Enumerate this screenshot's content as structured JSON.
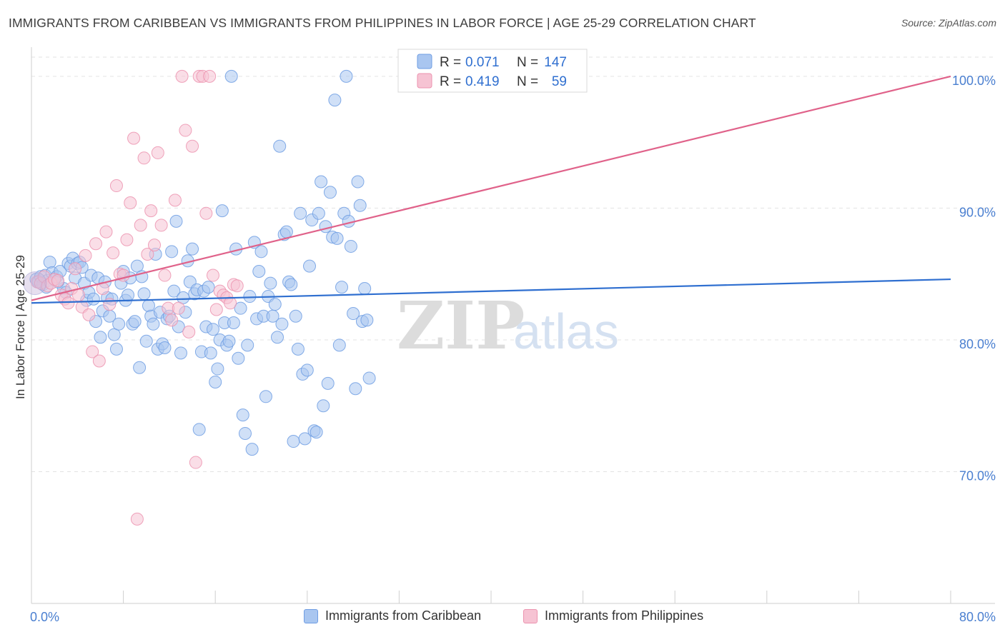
{
  "header": {
    "title": "IMMIGRANTS FROM CARIBBEAN VS IMMIGRANTS FROM PHILIPPINES IN LABOR FORCE | AGE 25-29 CORRELATION CHART",
    "source": "Source: ZipAtlas.com"
  },
  "watermark": {
    "zip": "ZIP",
    "atlas": "atlas"
  },
  "chart_data": {
    "type": "scatter",
    "title": "IMMIGRANTS FROM CARIBBEAN VS IMMIGRANTS FROM PHILIPPINES IN LABOR FORCE | AGE 25-29 CORRELATION CHART",
    "xlabel": "",
    "ylabel": "In Labor Force | Age 25-29",
    "xlim": [
      0,
      80
    ],
    "ylim": [
      60,
      102
    ],
    "x_tick_labels": [
      {
        "value": 0,
        "label": "0.0%"
      },
      {
        "value": 80,
        "label": "80.0%"
      }
    ],
    "y_tick_labels": [
      {
        "value": 70,
        "label": "70.0%"
      },
      {
        "value": 80,
        "label": "80.0%"
      },
      {
        "value": 90,
        "label": "90.0%"
      },
      {
        "value": 100,
        "label": "100.0%"
      }
    ],
    "grid": true,
    "legend_position": "top-center",
    "series": [
      {
        "name": "Immigrants from Caribbean",
        "color": "#6f9de3",
        "fill": "#a9c6f0",
        "line_color": "#2f6fd0",
        "r_label": "R =",
        "r_value": "0.071",
        "n_label": "N =",
        "n_value": "147",
        "trend": {
          "x0": 0,
          "y0": 82.8,
          "x1": 80,
          "y1": 84.6
        },
        "points": [
          [
            0.4,
            84.6
          ],
          [
            0.6,
            84.4
          ],
          [
            0.8,
            84.8
          ],
          [
            1.0,
            84.2
          ],
          [
            1.2,
            84.9
          ],
          [
            1.4,
            84.5
          ],
          [
            1.6,
            85.9
          ],
          [
            1.8,
            85.1
          ],
          [
            2.0,
            84.6
          ],
          [
            2.2,
            84.8
          ],
          [
            2.5,
            85.2
          ],
          [
            2.8,
            83.9
          ],
          [
            3.0,
            83.6
          ],
          [
            3.2,
            85.8
          ],
          [
            3.4,
            85.6
          ],
          [
            3.6,
            86.2
          ],
          [
            3.8,
            84.7
          ],
          [
            4.0,
            85.8
          ],
          [
            4.2,
            85.9
          ],
          [
            4.4,
            85.5
          ],
          [
            4.6,
            84.3
          ],
          [
            4.8,
            83.0
          ],
          [
            5.0,
            83.6
          ],
          [
            5.2,
            84.9
          ],
          [
            5.4,
            83.1
          ],
          [
            5.6,
            81.4
          ],
          [
            5.8,
            84.7
          ],
          [
            6.0,
            80.2
          ],
          [
            6.2,
            82.2
          ],
          [
            6.4,
            84.4
          ],
          [
            6.6,
            83.2
          ],
          [
            6.8,
            81.8
          ],
          [
            7.0,
            83.1
          ],
          [
            7.2,
            80.4
          ],
          [
            7.4,
            79.3
          ],
          [
            7.6,
            81.2
          ],
          [
            7.8,
            84.3
          ],
          [
            8.0,
            85.2
          ],
          [
            8.2,
            83.0
          ],
          [
            8.4,
            83.4
          ],
          [
            8.6,
            84.7
          ],
          [
            8.8,
            81.2
          ],
          [
            9.0,
            81.4
          ],
          [
            9.2,
            85.6
          ],
          [
            9.4,
            77.9
          ],
          [
            9.6,
            84.8
          ],
          [
            9.8,
            83.5
          ],
          [
            10.0,
            79.9
          ],
          [
            10.2,
            82.6
          ],
          [
            10.4,
            81.8
          ],
          [
            10.6,
            81.2
          ],
          [
            10.8,
            86.5
          ],
          [
            11.0,
            79.3
          ],
          [
            11.2,
            82.1
          ],
          [
            11.4,
            79.7
          ],
          [
            11.6,
            79.4
          ],
          [
            11.8,
            81.6
          ],
          [
            12.0,
            81.8
          ],
          [
            12.2,
            86.7
          ],
          [
            12.4,
            83.7
          ],
          [
            12.6,
            89.0
          ],
          [
            12.8,
            81.0
          ],
          [
            13.0,
            79.0
          ],
          [
            13.2,
            83.2
          ],
          [
            13.4,
            82.1
          ],
          [
            13.6,
            86.0
          ],
          [
            13.8,
            84.4
          ],
          [
            14.0,
            86.9
          ],
          [
            14.2,
            83.5
          ],
          [
            14.4,
            83.8
          ],
          [
            14.6,
            73.2
          ],
          [
            14.8,
            79.1
          ],
          [
            15.0,
            83.7
          ],
          [
            15.2,
            81.0
          ],
          [
            15.4,
            84.0
          ],
          [
            15.6,
            79.0
          ],
          [
            15.8,
            80.8
          ],
          [
            16.0,
            76.8
          ],
          [
            16.2,
            77.8
          ],
          [
            16.4,
            80.0
          ],
          [
            16.6,
            89.8
          ],
          [
            16.8,
            81.3
          ],
          [
            17.0,
            79.6
          ],
          [
            17.2,
            79.9
          ],
          [
            17.4,
            100.0
          ],
          [
            17.6,
            81.3
          ],
          [
            17.8,
            86.9
          ],
          [
            18.0,
            78.6
          ],
          [
            18.2,
            82.4
          ],
          [
            18.4,
            74.3
          ],
          [
            18.6,
            72.9
          ],
          [
            18.8,
            79.6
          ],
          [
            19.0,
            83.3
          ],
          [
            19.2,
            71.7
          ],
          [
            19.4,
            87.4
          ],
          [
            19.6,
            81.6
          ],
          [
            19.8,
            85.2
          ],
          [
            20.0,
            86.7
          ],
          [
            20.2,
            81.8
          ],
          [
            20.4,
            75.7
          ],
          [
            20.6,
            83.3
          ],
          [
            20.8,
            84.3
          ],
          [
            21.0,
            81.8
          ],
          [
            21.2,
            82.7
          ],
          [
            21.4,
            80.2
          ],
          [
            21.6,
            94.7
          ],
          [
            21.8,
            81.2
          ],
          [
            22.0,
            88.0
          ],
          [
            22.2,
            88.2
          ],
          [
            22.4,
            84.4
          ],
          [
            22.6,
            84.2
          ],
          [
            22.8,
            72.3
          ],
          [
            23.0,
            81.8
          ],
          [
            23.2,
            79.3
          ],
          [
            23.4,
            89.6
          ],
          [
            23.6,
            77.4
          ],
          [
            23.8,
            72.5
          ],
          [
            24.0,
            77.7
          ],
          [
            24.2,
            85.6
          ],
          [
            24.4,
            89.1
          ],
          [
            24.6,
            73.1
          ],
          [
            24.8,
            73.0
          ],
          [
            25.0,
            89.6
          ],
          [
            25.2,
            92.0
          ],
          [
            25.4,
            75.0
          ],
          [
            25.6,
            88.6
          ],
          [
            25.8,
            76.7
          ],
          [
            26.0,
            91.2
          ],
          [
            26.2,
            87.8
          ],
          [
            26.4,
            98.2
          ],
          [
            26.6,
            87.7
          ],
          [
            26.8,
            79.6
          ],
          [
            27.0,
            84.0
          ],
          [
            27.2,
            89.6
          ],
          [
            27.4,
            100.0
          ],
          [
            27.6,
            89.0
          ],
          [
            27.8,
            87.1
          ],
          [
            28.0,
            82.0
          ],
          [
            28.2,
            76.3
          ],
          [
            28.4,
            92.0
          ],
          [
            28.6,
            90.2
          ],
          [
            28.8,
            81.4
          ],
          [
            29.0,
            83.9
          ],
          [
            29.2,
            81.5
          ],
          [
            29.4,
            77.1
          ],
          [
            1.3,
            84.0
          ],
          [
            2.3,
            84.4
          ]
        ]
      },
      {
        "name": "Immigrants from Philippines",
        "color": "#ec93af",
        "fill": "#f6c3d3",
        "line_color": "#e0628a",
        "r_label": "R =",
        "r_value": "0.419",
        "n_label": "N =",
        "n_value": "59",
        "trend": {
          "x0": 0,
          "y0": 83.0,
          "x1": 80,
          "y1": 100.0
        },
        "points": [
          [
            0.5,
            84.4
          ],
          [
            0.8,
            84.3
          ],
          [
            1.1,
            84.8
          ],
          [
            1.4,
            84.1
          ],
          [
            1.7,
            84.3
          ],
          [
            2.0,
            84.6
          ],
          [
            2.3,
            84.5
          ],
          [
            2.6,
            83.4
          ],
          [
            2.9,
            83.1
          ],
          [
            3.2,
            82.8
          ],
          [
            3.5,
            83.9
          ],
          [
            3.8,
            85.4
          ],
          [
            4.1,
            83.4
          ],
          [
            4.4,
            82.5
          ],
          [
            4.7,
            86.4
          ],
          [
            5.0,
            81.9
          ],
          [
            5.3,
            79.1
          ],
          [
            5.6,
            87.3
          ],
          [
            5.9,
            78.4
          ],
          [
            6.2,
            83.9
          ],
          [
            6.5,
            88.2
          ],
          [
            6.8,
            82.7
          ],
          [
            7.1,
            86.6
          ],
          [
            7.4,
            91.7
          ],
          [
            7.7,
            85.0
          ],
          [
            8.0,
            84.9
          ],
          [
            8.3,
            87.6
          ],
          [
            8.6,
            90.4
          ],
          [
            8.9,
            95.3
          ],
          [
            9.2,
            66.4
          ],
          [
            9.5,
            88.7
          ],
          [
            9.8,
            93.8
          ],
          [
            10.1,
            86.5
          ],
          [
            10.4,
            89.8
          ],
          [
            10.7,
            87.2
          ],
          [
            11.0,
            94.2
          ],
          [
            11.3,
            88.7
          ],
          [
            11.6,
            84.9
          ],
          [
            11.9,
            82.4
          ],
          [
            12.2,
            81.5
          ],
          [
            12.5,
            90.6
          ],
          [
            12.8,
            82.4
          ],
          [
            13.1,
            100.0
          ],
          [
            13.4,
            95.9
          ],
          [
            13.7,
            80.6
          ],
          [
            14.0,
            94.7
          ],
          [
            14.3,
            70.7
          ],
          [
            14.6,
            100.0
          ],
          [
            14.9,
            100.0
          ],
          [
            15.2,
            89.6
          ],
          [
            15.5,
            100.0
          ],
          [
            15.8,
            84.9
          ],
          [
            16.1,
            82.3
          ],
          [
            16.4,
            83.7
          ],
          [
            16.7,
            83.4
          ],
          [
            17.0,
            83.2
          ],
          [
            17.3,
            82.8
          ],
          [
            17.6,
            84.2
          ],
          [
            17.9,
            84.1
          ]
        ]
      }
    ]
  },
  "bottom_legend": [
    {
      "label": "Immigrants from Caribbean"
    },
    {
      "label": "Immigrants from Philippines"
    }
  ]
}
